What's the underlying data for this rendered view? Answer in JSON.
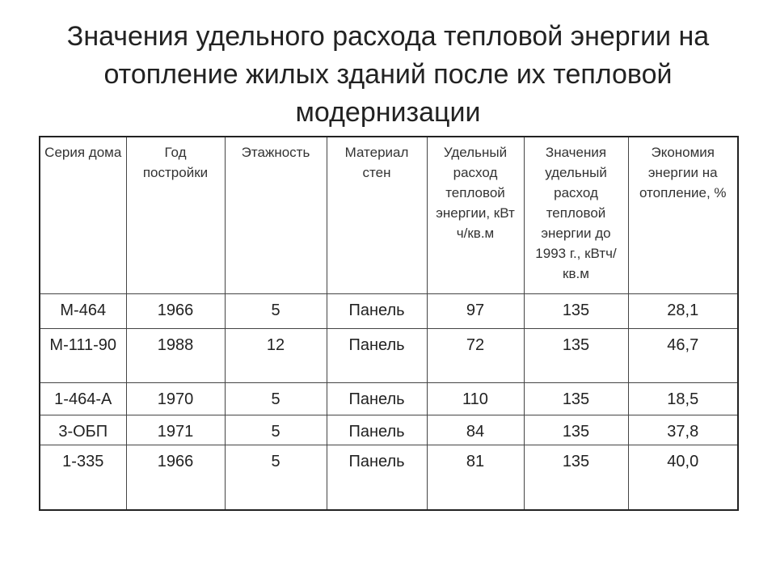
{
  "header": {
    "title": "Значения удельного расхода тепловой энергии на отопление жилых зданий после их тепловой модернизации"
  },
  "table": {
    "columns": [
      "Серия дома",
      "Год постройки",
      "Этажность",
      "Материал стен",
      "Удельный расход тепловой энергии, кВт ч/кв.м",
      "Значения удельный расход тепловой энергии до 1993 г., кВтч/кв.м",
      "Экономия энергии на отопление, %"
    ],
    "rows": [
      [
        "М-464",
        "1966",
        "5",
        "Панель",
        "97",
        "135",
        "28,1"
      ],
      [
        "М-111-90",
        "1988",
        "12",
        "Панель",
        "72",
        "135",
        "46,7"
      ],
      [
        "1-464-А",
        "1970",
        "5",
        "Панель",
        "110",
        "135",
        "18,5"
      ],
      [
        "3-ОБП",
        "1971",
        "5",
        "Панель",
        "84",
        "135",
        "37,8"
      ],
      [
        "1-335",
        "1966",
        "5",
        "Панель",
        "81",
        "135",
        "40,0"
      ]
    ]
  }
}
